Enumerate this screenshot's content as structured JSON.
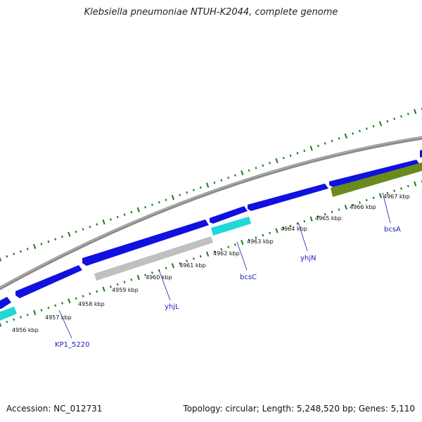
{
  "title": "Klebsiella pneumoniae NTUH-K2044, complete genome",
  "footer": {
    "accession": "Accession: NC_012731",
    "summary": "Topology: circular; Length: 5,248,520 bp; Genes: 5,110"
  },
  "map": {
    "ticks": [
      {
        "label": "4956 kbp"
      },
      {
        "label": "4957 kbp"
      },
      {
        "label": "4958 kbp"
      },
      {
        "label": "4959 kbp"
      },
      {
        "label": "4960 kbp"
      },
      {
        "label": "4961 kbp"
      },
      {
        "label": "4962 kbp"
      },
      {
        "label": "4963 kbp"
      },
      {
        "label": "4964 kbp"
      },
      {
        "label": "4965 kbp"
      },
      {
        "label": "4966 kbp"
      },
      {
        "label": "4967 kbp"
      }
    ],
    "gene_labels": [
      {
        "name": "KP1_5220"
      },
      {
        "name": "yhjL"
      },
      {
        "name": "bcsC"
      },
      {
        "name": "yhjN"
      },
      {
        "name": "bcsA"
      }
    ],
    "colors": {
      "backbone": "#8a8a8a",
      "cds": "#1010e0",
      "cyan_feature": "#20d8d8",
      "gray_feature": "#c0c0c0",
      "olive_feature": "#6b8a1e",
      "ticks": "#1a7a1a"
    }
  }
}
